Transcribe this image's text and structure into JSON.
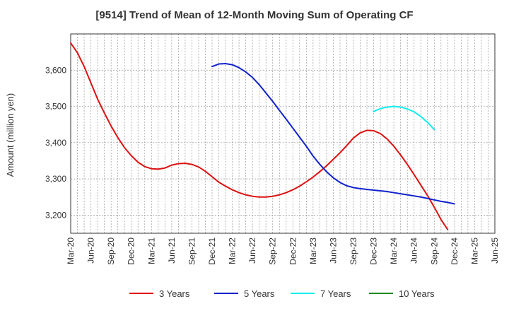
{
  "chart_data": {
    "type": "line",
    "title": "[9514]  Trend of Mean of 12-Month Moving Sum of Operating CF",
    "xlabel": "",
    "ylabel": "Amount (million yen)",
    "ylim": [
      3150,
      3700
    ],
    "yticks": [
      3200,
      3300,
      3400,
      3500,
      3600
    ],
    "ytick_labels": [
      "3,200",
      "3,300",
      "3,400",
      "3,500",
      "3,600"
    ],
    "x_start": "Mar-20",
    "x_end": "Jun-25",
    "x_tick_labels": [
      "Mar-20",
      "Jun-20",
      "Sep-20",
      "Dec-20",
      "Mar-21",
      "Jun-21",
      "Sep-21",
      "Dec-21",
      "Mar-22",
      "Jun-22",
      "Sep-22",
      "Dec-22",
      "Mar-23",
      "Jun-23",
      "Sep-23",
      "Dec-23",
      "Mar-24",
      "Jun-24",
      "Sep-24",
      "Dec-24",
      "Mar-25",
      "Jun-25"
    ],
    "grid": true,
    "legend_position": "bottom",
    "series": [
      {
        "name": "3 Years",
        "color": "#dd1111",
        "start_month_index": 0,
        "values": [
          3675,
          3648,
          3610,
          3565,
          3520,
          3482,
          3446,
          3414,
          3386,
          3364,
          3346,
          3334,
          3328,
          3327,
          3330,
          3338,
          3342,
          3343,
          3340,
          3333,
          3321,
          3306,
          3291,
          3280,
          3270,
          3262,
          3256,
          3252,
          3250,
          3250,
          3252,
          3256,
          3262,
          3270,
          3280,
          3292,
          3305,
          3320,
          3336,
          3354,
          3372,
          3392,
          3413,
          3427,
          3434,
          3433,
          3425,
          3410,
          3390,
          3366,
          3340,
          3312,
          3283,
          3254,
          3222,
          3188,
          3160
        ]
      },
      {
        "name": "5 Years",
        "color": "#1122cc",
        "start_month_index": 21,
        "values": [
          3610,
          3617,
          3618,
          3615,
          3607,
          3595,
          3580,
          3560,
          3537,
          3514,
          3489,
          3465,
          3440,
          3415,
          3390,
          3363,
          3340,
          3320,
          3303,
          3290,
          3281,
          3276,
          3273,
          3271,
          3269,
          3267,
          3265,
          3262,
          3259,
          3256,
          3253,
          3250,
          3246,
          3242,
          3238,
          3235,
          3231
        ]
      },
      {
        "name": "7 Years",
        "color": "#11eeee",
        "start_month_index": 45,
        "values": [
          3486,
          3494,
          3498,
          3500,
          3498,
          3493,
          3485,
          3472,
          3456,
          3436
        ]
      },
      {
        "name": "10 Years",
        "color": "#228822",
        "start_month_index": 0,
        "values": []
      }
    ]
  }
}
